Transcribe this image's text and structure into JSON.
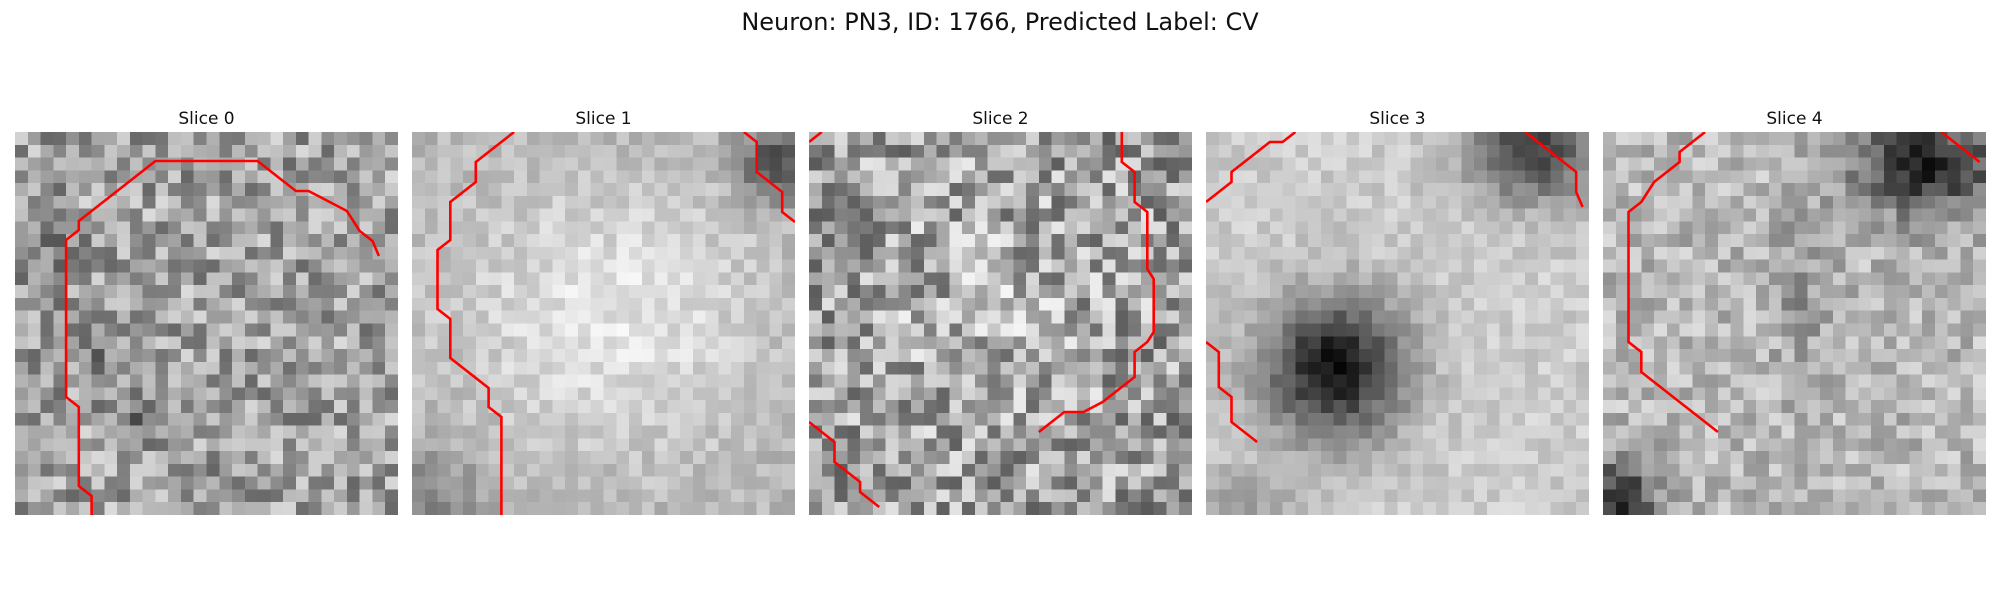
{
  "figure": {
    "title": "Neuron: PN3, ID: 1766, Predicted Label: CV"
  },
  "colors": {
    "contour": "#ff0000",
    "background": "#ffffff"
  },
  "colormap": "grayscale",
  "slices": [
    {
      "title": "Slice 0"
    },
    {
      "title": "Slice 1"
    },
    {
      "title": "Slice 2"
    },
    {
      "title": "Slice 3"
    },
    {
      "title": "Slice 4"
    }
  ]
}
